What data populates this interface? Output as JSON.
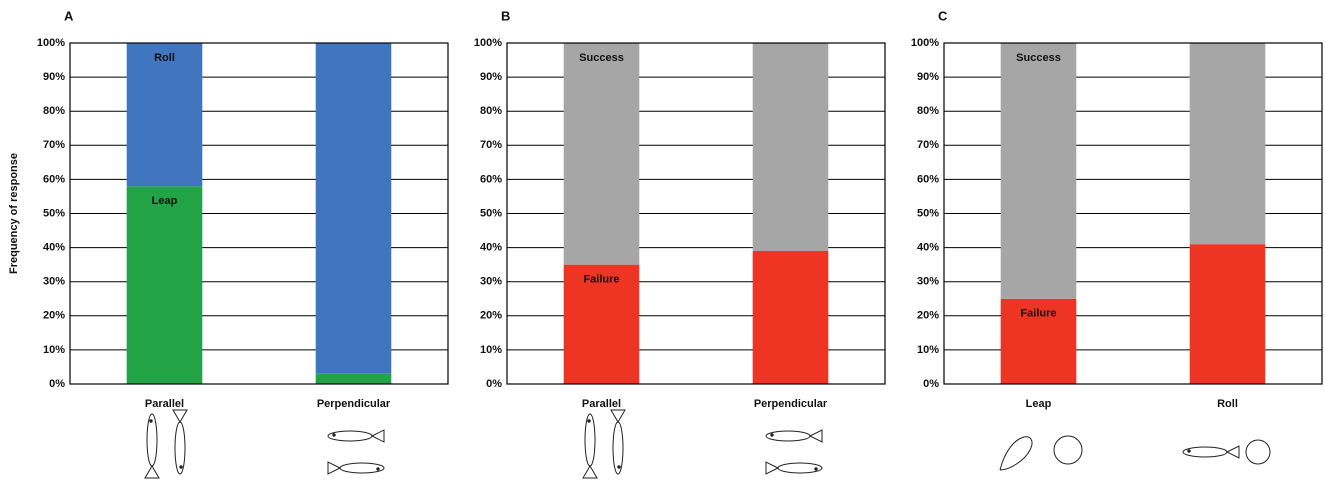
{
  "chart_data": [
    {
      "type": "bar",
      "stacked": true,
      "panel_label": "A",
      "y_label": "Frequency of response",
      "categories": [
        "Parallel",
        "Perpendicular"
      ],
      "series": [
        {
          "name": "Leap",
          "color": "#21a346",
          "values": [
            58,
            3
          ]
        },
        {
          "name": "Roll",
          "color": "#3f76bf",
          "values": [
            42,
            97
          ]
        }
      ],
      "ylim": [
        0,
        100
      ],
      "yticks": [
        {
          "value": 0,
          "label": "0%"
        },
        {
          "value": 10,
          "label": "10%"
        },
        {
          "value": 20,
          "label": "20%"
        },
        {
          "value": 30,
          "label": "30%"
        },
        {
          "value": 40,
          "label": "40%"
        },
        {
          "value": 50,
          "label": "50%"
        },
        {
          "value": 60,
          "label": "60%"
        },
        {
          "value": 70,
          "label": "70%"
        },
        {
          "value": 80,
          "label": "80%"
        },
        {
          "value": 90,
          "label": "90%"
        },
        {
          "value": 100,
          "label": "100%"
        }
      ],
      "grid": true
    },
    {
      "type": "bar",
      "stacked": true,
      "panel_label": "B",
      "categories": [
        "Parallel",
        "Perpendicular"
      ],
      "series": [
        {
          "name": "Failure",
          "color": "#ee3524",
          "values": [
            35,
            39
          ]
        },
        {
          "name": "Success",
          "color": "#a6a6a6",
          "values": [
            65,
            61
          ]
        }
      ],
      "ylim": [
        0,
        100
      ],
      "yticks": [
        {
          "value": 0,
          "label": "0%"
        },
        {
          "value": 10,
          "label": "10%"
        },
        {
          "value": 20,
          "label": "20%"
        },
        {
          "value": 30,
          "label": "30%"
        },
        {
          "value": 40,
          "label": "40%"
        },
        {
          "value": 50,
          "label": "50%"
        },
        {
          "value": 60,
          "label": "60%"
        },
        {
          "value": 70,
          "label": "70%"
        },
        {
          "value": 80,
          "label": "80%"
        },
        {
          "value": 90,
          "label": "90%"
        },
        {
          "value": 100,
          "label": "100%"
        }
      ],
      "grid": true
    },
    {
      "type": "bar",
      "stacked": true,
      "panel_label": "C",
      "categories": [
        "Leap",
        "Roll"
      ],
      "series": [
        {
          "name": "Failure",
          "color": "#ee3524",
          "values": [
            25,
            41
          ]
        },
        {
          "name": "Success",
          "color": "#a6a6a6",
          "values": [
            75,
            59
          ]
        }
      ],
      "ylim": [
        0,
        100
      ],
      "yticks": [
        {
          "value": 0,
          "label": "0%"
        },
        {
          "value": 10,
          "label": "10%"
        },
        {
          "value": 20,
          "label": "20%"
        },
        {
          "value": 30,
          "label": "30%"
        },
        {
          "value": 40,
          "label": "40%"
        },
        {
          "value": 50,
          "label": "50%"
        },
        {
          "value": 60,
          "label": "60%"
        },
        {
          "value": 70,
          "label": "70%"
        },
        {
          "value": 80,
          "label": "80%"
        },
        {
          "value": 90,
          "label": "90%"
        },
        {
          "value": 100,
          "label": "100%"
        }
      ],
      "grid": true
    }
  ]
}
